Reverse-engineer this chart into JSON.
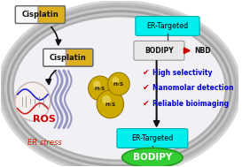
{
  "fig_width": 2.82,
  "fig_height": 1.89,
  "dpi": 100,
  "bg_color": "#ffffff",
  "checklist": [
    {
      "text": "High selectivity",
      "check_color": "#cc0000",
      "text_color": "#0000cc",
      "fontsize": 5.5
    },
    {
      "text": "Nanomolar detection",
      "check_color": "#cc0000",
      "text_color": "#0000cc",
      "fontsize": 5.5
    },
    {
      "text": "Reliable bioimaging",
      "check_color": "#cc0000",
      "text_color": "#0000cc",
      "fontsize": 5.5
    }
  ],
  "h2s_color": "#ccaa00",
  "h2s_shine": "#eedd66",
  "arrow_color": "#111111",
  "er_mem_color": "#8888bb",
  "red_arrow_color": "#cc0000"
}
